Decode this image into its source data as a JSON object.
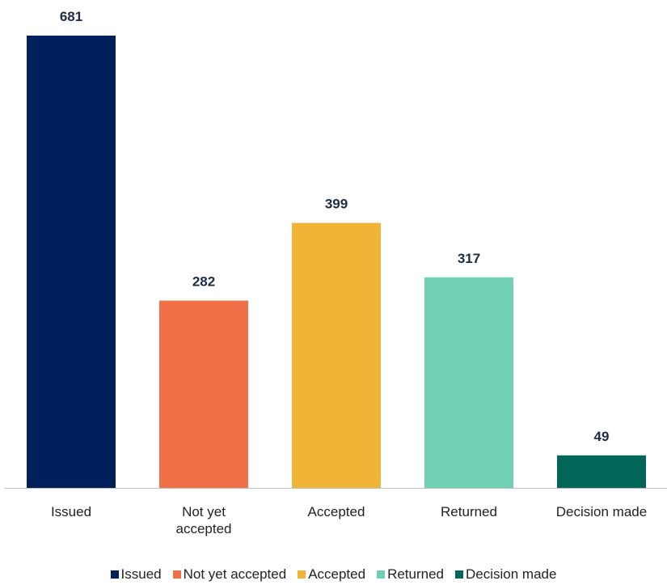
{
  "chart_data": {
    "type": "bar",
    "categories": [
      "Issued",
      "Not yet\naccepted",
      "Accepted",
      "Returned",
      "Decision made"
    ],
    "values": [
      681,
      282,
      399,
      317,
      49
    ],
    "colors": [
      "#00205b",
      "#f07048",
      "#f0b436",
      "#70d0b4",
      "#00665a"
    ],
    "legend": [
      "Issued",
      "Not yet accepted",
      "Accepted",
      "Returned",
      "Decision made"
    ]
  }
}
